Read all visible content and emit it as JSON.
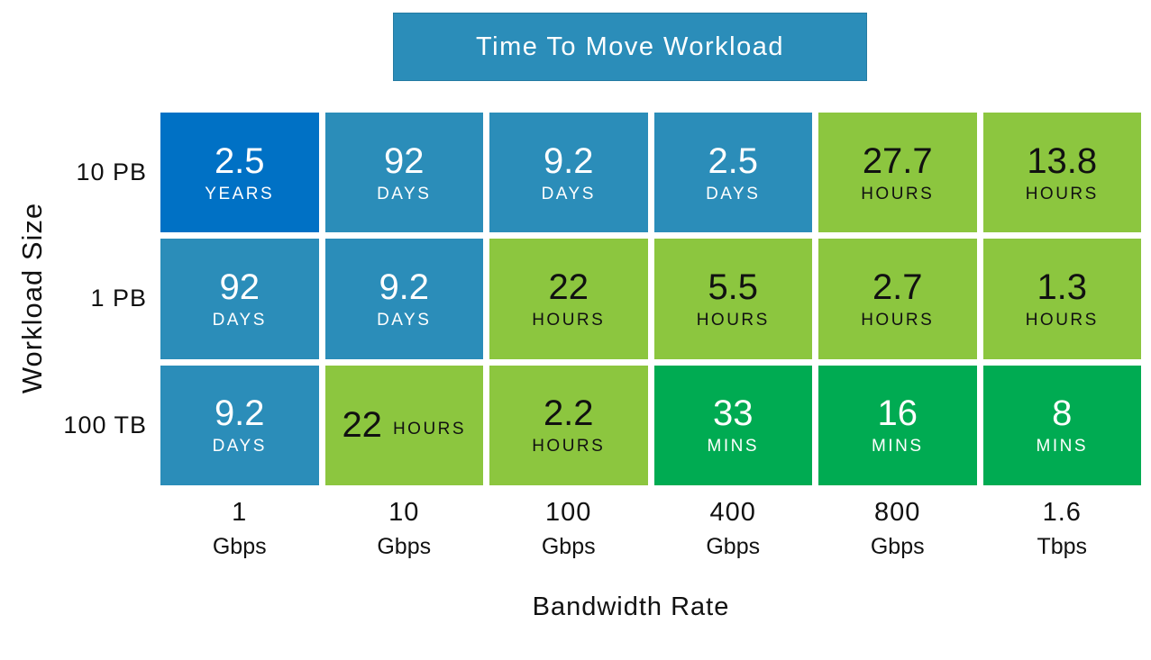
{
  "banner": {
    "title": "Time To Move Workload"
  },
  "axes": {
    "x_title": "Bandwidth Rate",
    "y_title": "Workload Size"
  },
  "colors": {
    "dark_blue": "#0071C5",
    "teal_blue": "#2B8DB9",
    "light_green": "#8CC63F",
    "emerald_green": "#00AB52",
    "banner_bg": "#2B8DB9",
    "banner_text": "#FFFFFF",
    "text_light": "#FFFFFF",
    "text_dark": "#111111"
  },
  "chart_data": {
    "type": "heatmap",
    "title": "Time To Move Workload",
    "xlabel": "Bandwidth Rate",
    "ylabel": "Workload Size",
    "x_categories": [
      {
        "value": "1",
        "unit": "Gbps"
      },
      {
        "value": "10",
        "unit": "Gbps"
      },
      {
        "value": "100",
        "unit": "Gbps"
      },
      {
        "value": "400",
        "unit": "Gbps"
      },
      {
        "value": "800",
        "unit": "Gbps"
      },
      {
        "value": "1.6",
        "unit": "Tbps"
      }
    ],
    "y_categories": [
      "10 PB",
      "1 PB",
      "100 TB"
    ],
    "cells": [
      [
        {
          "value": "2.5",
          "unit": "YEARS",
          "color": "dark_blue",
          "text": "light",
          "layout": "stacked"
        },
        {
          "value": "92",
          "unit": "DAYS",
          "color": "teal_blue",
          "text": "light",
          "layout": "stacked"
        },
        {
          "value": "9.2",
          "unit": "DAYS",
          "color": "teal_blue",
          "text": "light",
          "layout": "stacked"
        },
        {
          "value": "2.5",
          "unit": "DAYS",
          "color": "teal_blue",
          "text": "light",
          "layout": "stacked"
        },
        {
          "value": "27.7",
          "unit": "HOURS",
          "color": "light_green",
          "text": "dark",
          "layout": "stacked"
        },
        {
          "value": "13.8",
          "unit": "HOURS",
          "color": "light_green",
          "text": "dark",
          "layout": "stacked"
        }
      ],
      [
        {
          "value": "92",
          "unit": "DAYS",
          "color": "teal_blue",
          "text": "light",
          "layout": "stacked"
        },
        {
          "value": "9.2",
          "unit": "DAYS",
          "color": "teal_blue",
          "text": "light",
          "layout": "stacked"
        },
        {
          "value": "22",
          "unit": "HOURS",
          "color": "light_green",
          "text": "dark",
          "layout": "stacked"
        },
        {
          "value": "5.5",
          "unit": "HOURS",
          "color": "light_green",
          "text": "dark",
          "layout": "stacked"
        },
        {
          "value": "2.7",
          "unit": "HOURS",
          "color": "light_green",
          "text": "dark",
          "layout": "stacked"
        },
        {
          "value": "1.3",
          "unit": "HOURS",
          "color": "light_green",
          "text": "dark",
          "layout": "stacked"
        }
      ],
      [
        {
          "value": "9.2",
          "unit": "DAYS",
          "color": "teal_blue",
          "text": "light",
          "layout": "stacked"
        },
        {
          "value": "22",
          "unit": "HOURS",
          "color": "light_green",
          "text": "dark",
          "layout": "inline"
        },
        {
          "value": "2.2",
          "unit": "HOURS",
          "color": "light_green",
          "text": "dark",
          "layout": "stacked"
        },
        {
          "value": "33",
          "unit": "MINS",
          "color": "emerald_green",
          "text": "light",
          "layout": "stacked"
        },
        {
          "value": "16",
          "unit": "MINS",
          "color": "emerald_green",
          "text": "light",
          "layout": "stacked"
        },
        {
          "value": "8",
          "unit": "MINS",
          "color": "emerald_green",
          "text": "light",
          "layout": "stacked"
        }
      ]
    ]
  }
}
